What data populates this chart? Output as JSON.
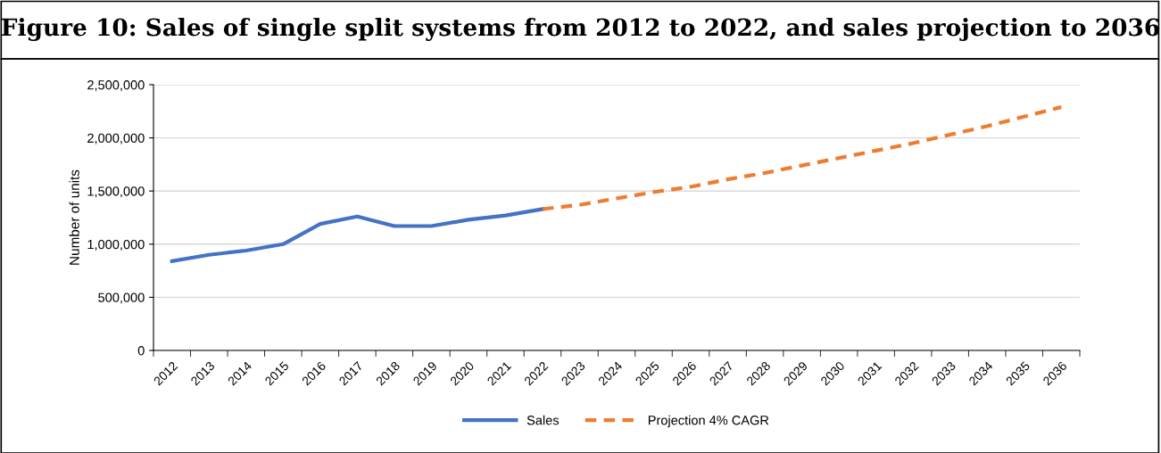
{
  "chart_data": {
    "type": "line",
    "title": "Figure 10: Sales of single split systems from 2012 to 2022, and sales projection to 2036",
    "ylabel": "Number of units",
    "categories": [
      "2012",
      "2013",
      "2014",
      "2015",
      "2016",
      "2017",
      "2018",
      "2019",
      "2020",
      "2021",
      "2022",
      "2023",
      "2024",
      "2025",
      "2026",
      "2027",
      "2028",
      "2029",
      "2030",
      "2031",
      "2032",
      "2033",
      "2034",
      "2035",
      "2036"
    ],
    "series": [
      {
        "name": "Sales",
        "color": "#4472c4",
        "line_style": "solid",
        "values": [
          840000,
          900000,
          940000,
          1000000,
          1190000,
          1260000,
          1170000,
          1170000,
          1230000,
          1270000,
          1330000,
          null,
          null,
          null,
          null,
          null,
          null,
          null,
          null,
          null,
          null,
          null,
          null,
          null,
          null
        ]
      },
      {
        "name": "Projection 4% CAGR",
        "color": "#ed7d31",
        "line_style": "dashed",
        "values": [
          null,
          null,
          null,
          null,
          null,
          null,
          null,
          null,
          null,
          null,
          1330000,
          1370000,
          1430000,
          1490000,
          1540000,
          1610000,
          1670000,
          1740000,
          1810000,
          1880000,
          1950000,
          2030000,
          2110000,
          2200000,
          2290000
        ]
      }
    ],
    "ylim": [
      0,
      2500000
    ],
    "yticks": [
      {
        "value": 0,
        "label": "0"
      },
      {
        "value": 500000,
        "label": "500,000"
      },
      {
        "value": 1000000,
        "label": "1,000,000"
      },
      {
        "value": 1500000,
        "label": "1,500,000"
      },
      {
        "value": 2000000,
        "label": "2,000,000"
      },
      {
        "value": 2500000,
        "label": "2,500,000"
      }
    ],
    "grid": "y",
    "legend": "bottom",
    "marker": "none"
  }
}
